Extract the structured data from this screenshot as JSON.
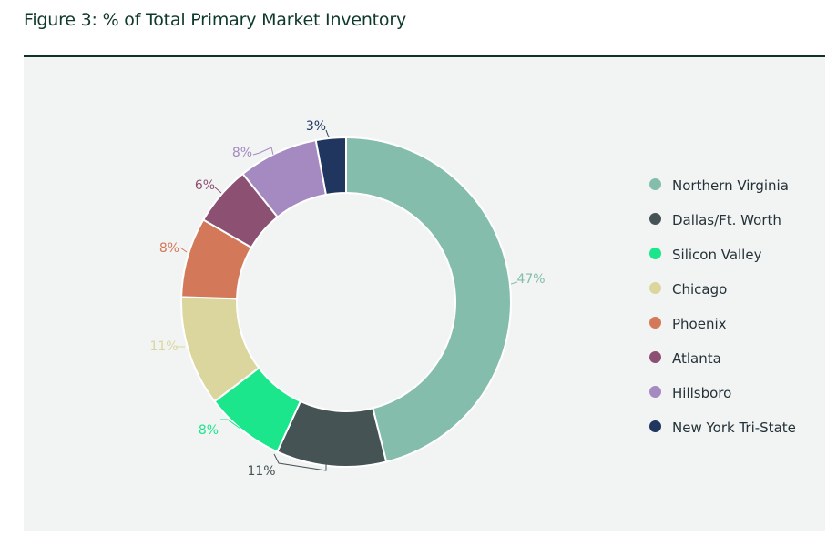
{
  "title": "Figure 3: % of Total Primary Market Inventory",
  "chart_data": {
    "type": "pie",
    "variant": "donut",
    "legend_position": "right",
    "categories": [
      "Northern Virginia",
      "Dallas/Ft. Worth",
      "Silicon Valley",
      "Chicago",
      "Phoenix",
      "Atlanta",
      "Hillsboro",
      "New York Tri-State"
    ],
    "values": [
      47,
      11,
      8,
      11,
      8,
      6,
      8,
      3
    ],
    "labels": [
      "47%",
      "11%",
      "8%",
      "11%",
      "8%",
      "6%",
      "8%",
      "3%"
    ],
    "colors": [
      "#84bdac",
      "#465355",
      "#1ce68c",
      "#dbd69e",
      "#d37858",
      "#8c5073",
      "#a58ac1",
      "#20365f"
    ],
    "label_colors": [
      "#84bdac",
      "#465355",
      "#1ce68c",
      "#dbd69e",
      "#d37858",
      "#8c5073",
      "#a58ac1",
      "#20365f"
    ]
  }
}
